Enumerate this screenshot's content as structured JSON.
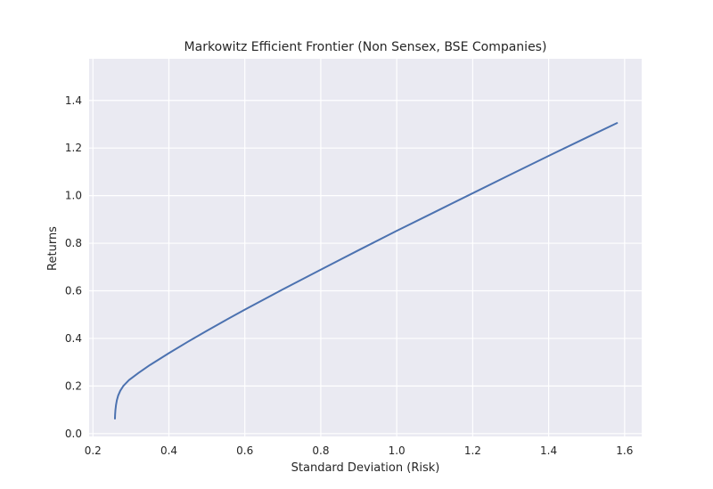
{
  "chart_data": {
    "type": "line",
    "title": "Markowitz Efficient Frontier (Non Sensex, BSE Companies)",
    "xlabel": "Standard Deviation (Risk)",
    "ylabel": "Returns",
    "xlim": [
      0.19,
      1.645
    ],
    "ylim": [
      -0.012,
      1.575
    ],
    "xticks": [
      0.2,
      0.4,
      0.6,
      0.8,
      1.0,
      1.2,
      1.4,
      1.6
    ],
    "xtick_labels": [
      "0.2",
      "0.4",
      "0.6",
      "0.8",
      "1.0",
      "1.2",
      "1.4",
      "1.6"
    ],
    "yticks": [
      0.0,
      0.2,
      0.4,
      0.6,
      0.8,
      1.0,
      1.2,
      1.4
    ],
    "ytick_labels": [
      "0.0",
      "0.2",
      "0.4",
      "0.6",
      "0.8",
      "1.0",
      "1.2",
      "1.4"
    ],
    "grid": true,
    "background": "#eaeaf2",
    "grid_color": "#ffffff",
    "line_color": "#4c72b0",
    "series": [
      {
        "x": [
          0.258,
          0.2584,
          0.2593,
          0.2608,
          0.263,
          0.2665,
          0.272,
          0.28,
          0.295,
          0.32,
          0.35,
          0.4,
          0.45,
          0.5,
          0.55,
          0.6,
          0.7,
          0.8,
          0.9,
          1.0,
          1.1,
          1.2,
          1.3,
          1.4,
          1.5,
          1.58
        ],
        "y": [
          0.063,
          0.08,
          0.1,
          0.12,
          0.14,
          0.16,
          0.18,
          0.2,
          0.225,
          0.255,
          0.288,
          0.338,
          0.386,
          0.432,
          0.477,
          0.521,
          0.606,
          0.689,
          0.771,
          0.852,
          0.931,
          1.01,
          1.089,
          1.167,
          1.244,
          1.305
        ]
      }
    ]
  }
}
